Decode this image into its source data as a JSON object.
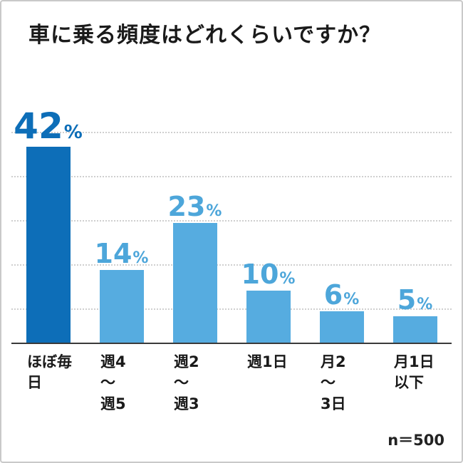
{
  "chart_data": {
    "type": "bar",
    "title": "車に乗る頻度はどれくらいですか？",
    "categories": [
      "ほぼ毎日",
      "週4\n～\n週5",
      "週2\n～\n週3",
      "週1日",
      "月2\n～\n3日",
      "月1日\n以下"
    ],
    "values": [
      42,
      14,
      23,
      10,
      6,
      5
    ],
    "value_unit": "%",
    "percent_sign": "%",
    "sample_label": "n＝500",
    "ylim": [
      0,
      45
    ],
    "grid": "dotted-horizontal",
    "legend": "none",
    "colors": {
      "bar_primary": "#0d6eb8",
      "bar_secondary": "#56ace0",
      "label_primary": "#0d6eb8",
      "label_secondary": "#4da6da",
      "title_text": "#1a1a1a",
      "axis_line": "#3a3a3a",
      "gridline": "#cfcfcf"
    }
  }
}
